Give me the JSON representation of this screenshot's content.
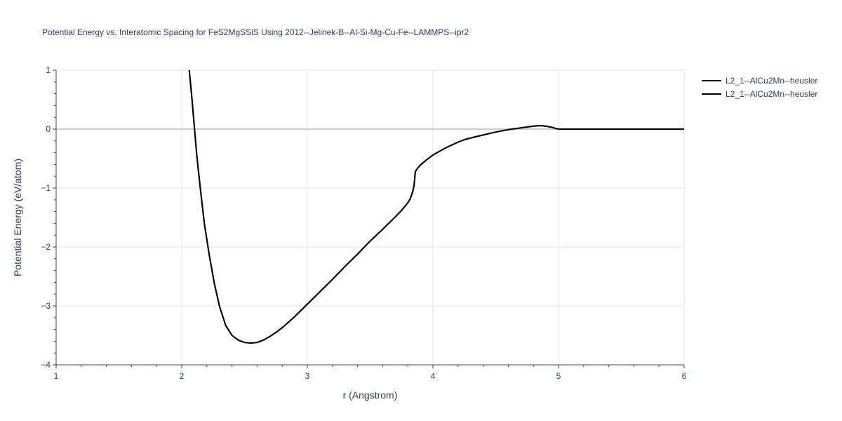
{
  "chart_data": {
    "type": "line",
    "title": "Potential Energy vs. Interatomic Spacing for FeS2MgSSiS Using 2012--Jelinek-B--Al-Si-Mg-Cu-Fe--LAMMPS--ipr2",
    "xlabel": "r (Angstrom)",
    "ylabel": "Potential Energy (eV/atom)",
    "xlim": [
      1,
      6
    ],
    "ylim": [
      -4,
      1
    ],
    "x_ticks": [
      1,
      2,
      3,
      4,
      5,
      6
    ],
    "y_ticks": [
      1,
      0,
      -1,
      -2,
      -3,
      -4
    ],
    "x_tick_labels": [
      "1",
      "2",
      "3",
      "4",
      "5",
      "6"
    ],
    "y_tick_labels": [
      "1",
      "0",
      "−1",
      "−2",
      "−3",
      "−4"
    ],
    "grid": true,
    "legend_position": "top-right",
    "series": [
      {
        "name": "L2_1--AlCu2Mn--heusler",
        "color": "#000000",
        "x": [
          2.06,
          2.08,
          2.1,
          2.12,
          2.15,
          2.18,
          2.22,
          2.26,
          2.3,
          2.35,
          2.4,
          2.45,
          2.5,
          2.55,
          2.6,
          2.65,
          2.7,
          2.75,
          2.8,
          2.9,
          3.0,
          3.1,
          3.2,
          3.3,
          3.4,
          3.5,
          3.6,
          3.7,
          3.75,
          3.8,
          3.82,
          3.84,
          3.85,
          3.86,
          3.88,
          3.9,
          3.95,
          4.0,
          4.05,
          4.1,
          4.15,
          4.2,
          4.25,
          4.3,
          4.4,
          4.5,
          4.6,
          4.7,
          4.8,
          4.85,
          4.9,
          4.95,
          4.98,
          5.0,
          5.2,
          5.4,
          5.6,
          5.8,
          6.0
        ],
        "y": [
          1.0,
          0.55,
          0.05,
          -0.45,
          -1.05,
          -1.6,
          -2.15,
          -2.62,
          -3.0,
          -3.33,
          -3.5,
          -3.58,
          -3.62,
          -3.63,
          -3.62,
          -3.58,
          -3.52,
          -3.45,
          -3.37,
          -3.18,
          -2.97,
          -2.76,
          -2.55,
          -2.33,
          -2.12,
          -1.9,
          -1.7,
          -1.49,
          -1.38,
          -1.25,
          -1.18,
          -1.05,
          -0.95,
          -0.72,
          -0.66,
          -0.61,
          -0.52,
          -0.44,
          -0.38,
          -0.32,
          -0.27,
          -0.22,
          -0.18,
          -0.15,
          -0.1,
          -0.05,
          -0.01,
          0.02,
          0.05,
          0.06,
          0.05,
          0.03,
          0.01,
          0.0,
          0.0,
          0.0,
          0.0,
          0.0,
          0.0
        ]
      },
      {
        "name": "L2_1--AlCu2Mn--heusler",
        "color": "#000000",
        "x": [
          2.06,
          2.08,
          2.1,
          2.12,
          2.15,
          2.18,
          2.22,
          2.26,
          2.3,
          2.35,
          2.4,
          2.45,
          2.5,
          2.55,
          2.6,
          2.65,
          2.7,
          2.75,
          2.8,
          2.9,
          3.0,
          3.1,
          3.2,
          3.3,
          3.4,
          3.5,
          3.6,
          3.7,
          3.75,
          3.8,
          3.82,
          3.84,
          3.85,
          3.86,
          3.88,
          3.9,
          3.95,
          4.0,
          4.05,
          4.1,
          4.15,
          4.2,
          4.25,
          4.3,
          4.4,
          4.5,
          4.6,
          4.7,
          4.8,
          4.85,
          4.9,
          4.95,
          4.98,
          5.0,
          5.2,
          5.4,
          5.6,
          5.8,
          6.0
        ],
        "y": [
          1.0,
          0.55,
          0.05,
          -0.45,
          -1.05,
          -1.6,
          -2.15,
          -2.62,
          -3.0,
          -3.33,
          -3.5,
          -3.58,
          -3.62,
          -3.63,
          -3.62,
          -3.58,
          -3.52,
          -3.45,
          -3.37,
          -3.18,
          -2.97,
          -2.76,
          -2.55,
          -2.33,
          -2.12,
          -1.9,
          -1.7,
          -1.49,
          -1.38,
          -1.25,
          -1.18,
          -1.05,
          -0.95,
          -0.72,
          -0.66,
          -0.61,
          -0.52,
          -0.44,
          -0.38,
          -0.32,
          -0.27,
          -0.22,
          -0.18,
          -0.15,
          -0.1,
          -0.05,
          -0.01,
          0.02,
          0.05,
          0.06,
          0.05,
          0.03,
          0.01,
          0.0,
          0.0,
          0.0,
          0.0,
          0.0,
          0.0
        ]
      }
    ]
  }
}
